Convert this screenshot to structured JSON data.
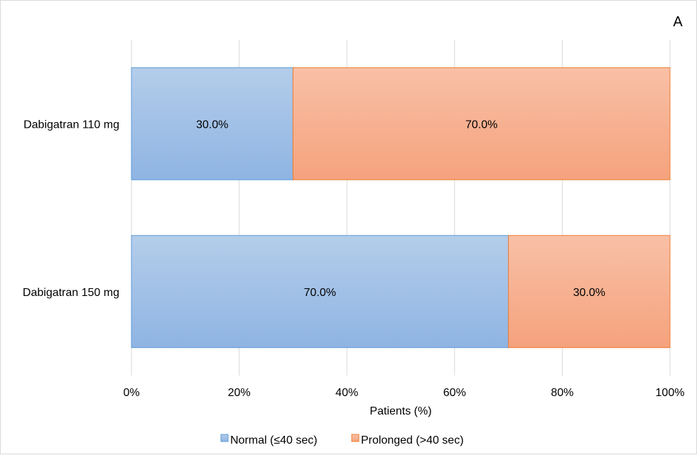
{
  "chart_data": {
    "type": "bar",
    "orientation": "horizontal",
    "stacked": true,
    "panel_label": "A",
    "categories": [
      "Dabigatran 110 mg",
      "Dabigatran 150 mg"
    ],
    "series": [
      {
        "name": "Normal (≤40 sec)",
        "values": [
          30.0,
          70.0
        ],
        "labels": [
          "30.0%",
          "70.0%"
        ],
        "color_top": "#b4cdea",
        "color_bottom": "#8fb4e3",
        "stroke": "#5b9bd5"
      },
      {
        "name": "Prolonged (>40 sec)",
        "values": [
          70.0,
          30.0
        ],
        "labels": [
          "70.0%",
          "30.0%"
        ],
        "color_top": "#f8c0a6",
        "color_bottom": "#f5a27d",
        "stroke": "#ed7d31"
      }
    ],
    "xlabel": "Patients (%)",
    "ylabel": "",
    "xlim": [
      0,
      100
    ],
    "xticks": [
      0,
      20,
      40,
      60,
      80,
      100
    ],
    "xtick_labels": [
      "0%",
      "20%",
      "40%",
      "60%",
      "80%",
      "100%"
    ],
    "grid": true,
    "legend": "bottom"
  }
}
